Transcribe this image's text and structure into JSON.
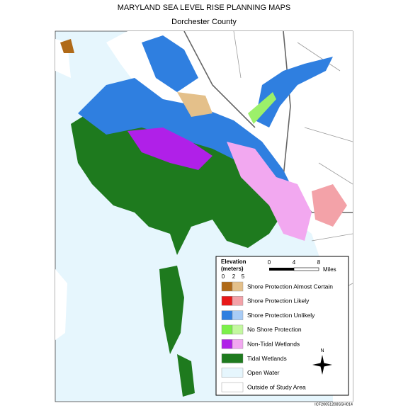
{
  "header": {
    "title": "MARYLAND SEA LEVEL RISE PLANNING MAPS",
    "subtitle": "Dorchester County"
  },
  "legend": {
    "title_line1": "Elevation",
    "title_line2": "(meters)",
    "elevation_ticks": [
      0,
      2,
      5
    ],
    "scale_ticks": [
      0,
      4,
      8
    ],
    "scale_unit": "Miles",
    "items": [
      "Shore Protection Almost Certain",
      "Shore Protection Likely",
      "Shore Protection Unlikely",
      "No Shore Protection",
      "Non-Tidal Wetlands",
      "Tidal Wetlands",
      "Open Water",
      "Outside of Study Area"
    ],
    "north": "N"
  },
  "footer": {
    "code": "ICF20051208SSH014"
  }
}
